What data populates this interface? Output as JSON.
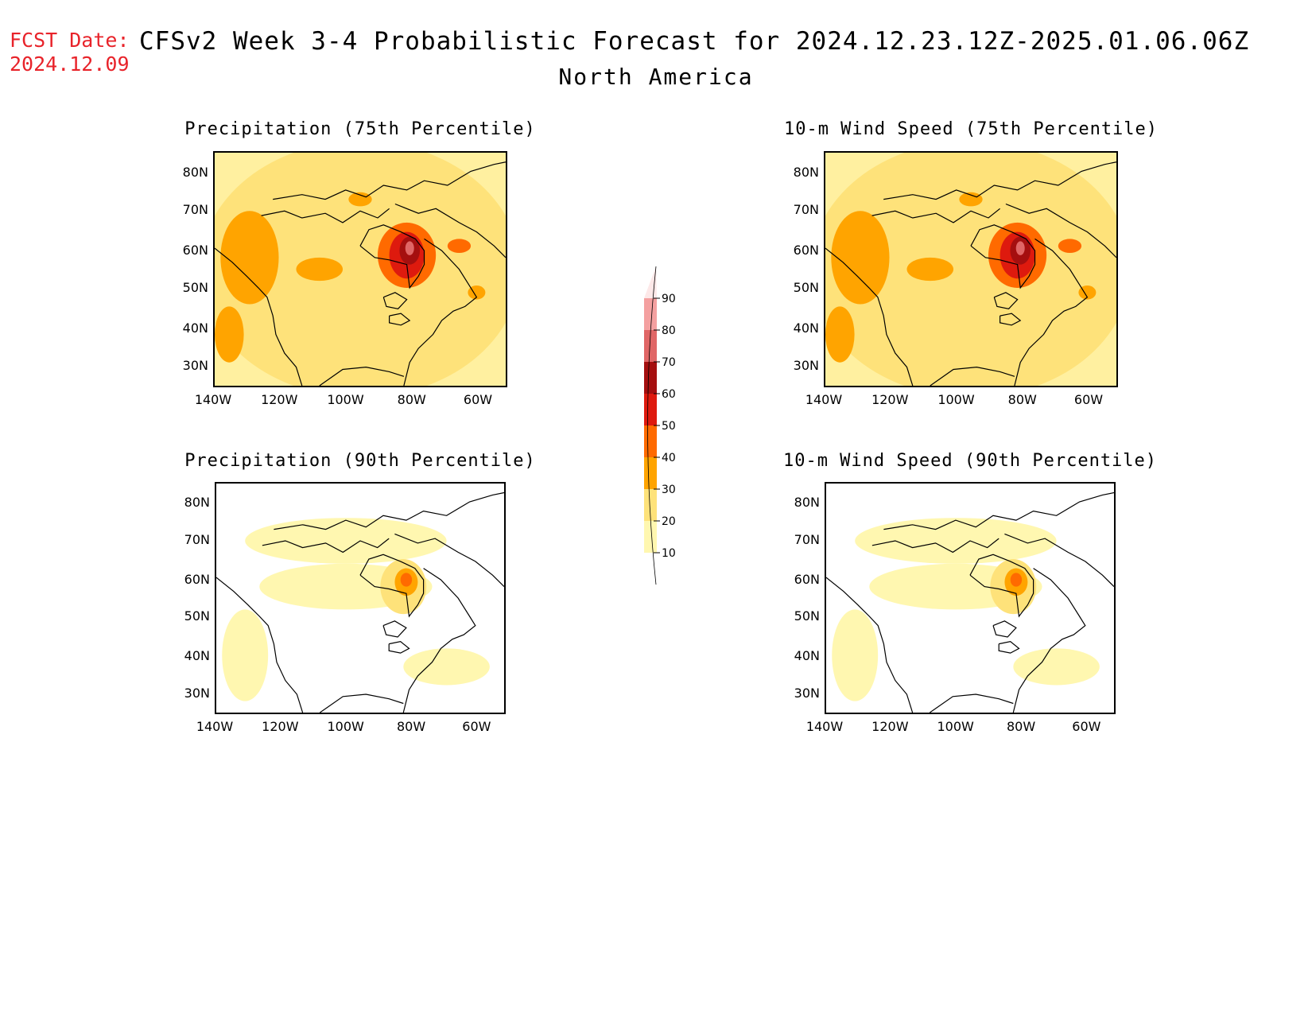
{
  "header": {
    "fcst_label": "FCST Date:",
    "fcst_date": "2024.12.09",
    "title": "CFSv2 Week 3-4 Probabilistic Forecast for 2024.12.23.12Z-2025.01.06.06Z",
    "region": "North America"
  },
  "panels": [
    {
      "title": "Precipitation (75th Percentile)",
      "level": "high"
    },
    {
      "title": "10-m Wind Speed (75th Percentile)",
      "level": "high"
    },
    {
      "title": "Precipitation (90th Percentile)",
      "level": "low"
    },
    {
      "title": "10-m Wind Speed (90th Percentile)",
      "level": "low"
    }
  ],
  "axes": {
    "lat_labels": [
      "80N",
      "70N",
      "60N",
      "50N",
      "40N",
      "30N"
    ],
    "lon_labels": [
      "140W",
      "120W",
      "100W",
      "80W",
      "60W"
    ]
  },
  "colorbar": {
    "labels": [
      "90",
      "80",
      "70",
      "60",
      "50",
      "40",
      "30",
      "20",
      "10"
    ],
    "colors": [
      "#fde8e8",
      "#f4a0a0",
      "#e06666",
      "#a50f0f",
      "#de1a0e",
      "#ff6a00",
      "#ffa400",
      "#fee27a",
      "#fff7b0"
    ]
  }
}
